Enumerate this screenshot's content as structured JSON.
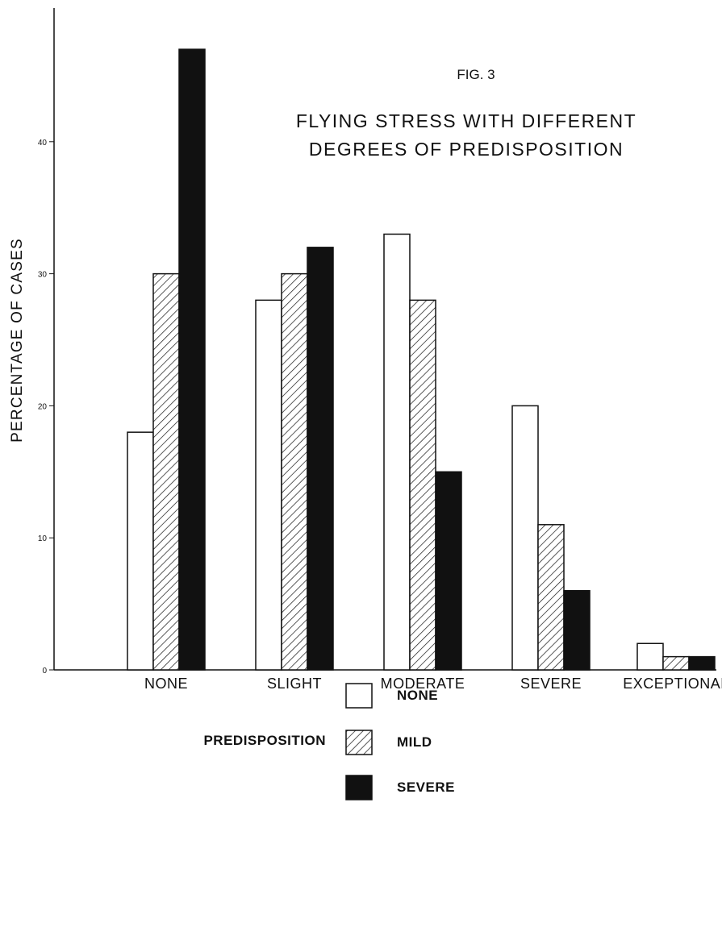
{
  "chart_data": {
    "type": "bar",
    "fig_label": "FIG. 3",
    "title_lines": [
      "FLYING STRESS WITH DIFFERENT",
      "DEGREES OF PREDISPOSITION"
    ],
    "xlabel": "",
    "ylabel": "PERCENTAGE OF CASES",
    "ylim": [
      0,
      50
    ],
    "yticks": [
      0,
      10,
      20,
      30,
      40
    ],
    "ytick_labels": [
      "0",
      "10",
      "20",
      "30",
      "40"
    ],
    "grid": false,
    "categories": [
      "NONE",
      "SLIGHT",
      "MODERATE",
      "SEVERE",
      "EXCEPTIONAL"
    ],
    "series": [
      {
        "name": "NONE",
        "fill": "empty",
        "values": [
          18,
          28,
          33,
          20,
          2
        ]
      },
      {
        "name": "MILD",
        "fill": "hatched",
        "values": [
          30,
          30,
          28,
          11,
          1
        ]
      },
      {
        "name": "SEVERE",
        "fill": "solid",
        "values": [
          47,
          32,
          15,
          6,
          1
        ]
      }
    ],
    "legend": {
      "title": "PREDISPOSITION",
      "placement": "bottom-center",
      "entries": [
        "NONE",
        "MILD",
        "SEVERE"
      ]
    },
    "colors": {
      "ink": "#111111",
      "paper": "#ffffff"
    }
  }
}
